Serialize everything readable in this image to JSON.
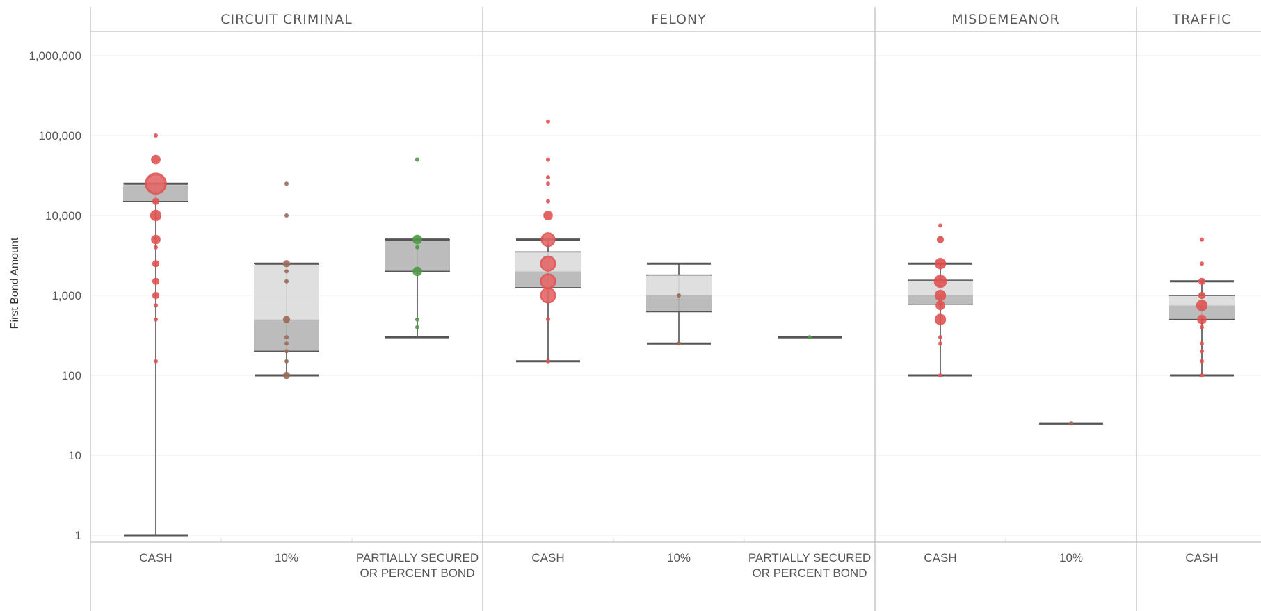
{
  "chart_data": {
    "type": "box",
    "ylabel": "First Bond Amount",
    "yscale": "log",
    "ylim": [
      1,
      2000000
    ],
    "yticks": [
      {
        "value": 1,
        "label": "1"
      },
      {
        "value": 10,
        "label": "10"
      },
      {
        "value": 100,
        "label": "100"
      },
      {
        "value": 1000,
        "label": "1,000"
      },
      {
        "value": 10000,
        "label": "10,000"
      },
      {
        "value": 100000,
        "label": "100,000"
      },
      {
        "value": 1000000,
        "label": "1,000,000"
      }
    ],
    "grid": true,
    "facets": [
      {
        "title": "CIRCUIT CRIMINAL",
        "categories": [
          {
            "label": [
              "CASH"
            ],
            "color": "#e05252",
            "box": {
              "min": 1,
              "q1": 15000,
              "median": 24000,
              "q3": 25000,
              "max": 25000
            },
            "points": [
              {
                "y": 100000,
                "size": 1
              },
              {
                "y": 50000,
                "size": 3
              },
              {
                "y": 25000,
                "size": 12
              },
              {
                "y": 15000,
                "size": 2
              },
              {
                "y": 10000,
                "size": 4
              },
              {
                "y": 5000,
                "size": 3
              },
              {
                "y": 4000,
                "size": 1
              },
              {
                "y": 2500,
                "size": 2
              },
              {
                "y": 1500,
                "size": 2
              },
              {
                "y": 1000,
                "size": 2
              },
              {
                "y": 750,
                "size": 1
              },
              {
                "y": 500,
                "size": 1
              },
              {
                "y": 150,
                "size": 1
              }
            ]
          },
          {
            "label": [
              "10%"
            ],
            "color": "#9a6a55",
            "box": {
              "min": 100,
              "q1": 200,
              "median": 500,
              "q3": 2500,
              "max": 2500
            },
            "points": [
              {
                "y": 25000,
                "size": 1
              },
              {
                "y": 10000,
                "size": 1
              },
              {
                "y": 2500,
                "size": 2
              },
              {
                "y": 2000,
                "size": 1
              },
              {
                "y": 1500,
                "size": 1
              },
              {
                "y": 500,
                "size": 2
              },
              {
                "y": 300,
                "size": 1
              },
              {
                "y": 250,
                "size": 1
              },
              {
                "y": 200,
                "size": 1
              },
              {
                "y": 150,
                "size": 1
              },
              {
                "y": 100,
                "size": 2
              }
            ]
          },
          {
            "label": [
              "PARTIALLY SECURED",
              "OR PERCENT BOND"
            ],
            "color": "#4f9a45",
            "box": {
              "min": 300,
              "q1": 2000,
              "median": 5000,
              "q3": 5000,
              "max": 5000
            },
            "points": [
              {
                "y": 50000,
                "size": 1
              },
              {
                "y": 5000,
                "size": 3
              },
              {
                "y": 4000,
                "size": 1
              },
              {
                "y": 2000,
                "size": 3
              },
              {
                "y": 500,
                "size": 1
              },
              {
                "y": 400,
                "size": 1
              }
            ]
          }
        ]
      },
      {
        "title": "FELONY",
        "categories": [
          {
            "label": [
              "CASH"
            ],
            "color": "#e05252",
            "box": {
              "min": 150,
              "q1": 1250,
              "median": 2000,
              "q3": 3500,
              "max": 5000
            },
            "points": [
              {
                "y": 150000,
                "size": 1
              },
              {
                "y": 50000,
                "size": 1
              },
              {
                "y": 30000,
                "size": 1
              },
              {
                "y": 25000,
                "size": 1
              },
              {
                "y": 15000,
                "size": 1
              },
              {
                "y": 10000,
                "size": 3
              },
              {
                "y": 5000,
                "size": 6
              },
              {
                "y": 2500,
                "size": 7
              },
              {
                "y": 1500,
                "size": 7
              },
              {
                "y": 1000,
                "size": 7
              },
              {
                "y": 500,
                "size": 1
              },
              {
                "y": 150,
                "size": 1
              }
            ]
          },
          {
            "label": [
              "10%"
            ],
            "color": "#9a6a55",
            "box": {
              "min": 250,
              "q1": 625,
              "median": 1000,
              "q3": 1800,
              "max": 2500
            },
            "points": [
              {
                "y": 1000,
                "size": 1
              },
              {
                "y": 250,
                "size": 1
              }
            ]
          },
          {
            "label": [
              "PARTIALLY SECURED",
              "OR PERCENT BOND"
            ],
            "color": "#4f9a45",
            "box": {
              "min": 300,
              "q1": 300,
              "median": 300,
              "q3": 300,
              "max": 300
            },
            "points": [
              {
                "y": 300,
                "size": 1
              }
            ]
          }
        ]
      },
      {
        "title": "MISDEMEANOR",
        "categories": [
          {
            "label": [
              "CASH"
            ],
            "color": "#e05252",
            "box": {
              "min": 100,
              "q1": 775,
              "median": 1000,
              "q3": 1550,
              "max": 2500
            },
            "points": [
              {
                "y": 7500,
                "size": 1
              },
              {
                "y": 5000,
                "size": 2
              },
              {
                "y": 2500,
                "size": 4
              },
              {
                "y": 1500,
                "size": 5
              },
              {
                "y": 1000,
                "size": 4
              },
              {
                "y": 750,
                "size": 3
              },
              {
                "y": 500,
                "size": 4
              },
              {
                "y": 300,
                "size": 1
              },
              {
                "y": 250,
                "size": 1
              },
              {
                "y": 100,
                "size": 1
              }
            ]
          },
          {
            "label": [
              "10%"
            ],
            "color": "#9a6a55",
            "box": {
              "min": 25,
              "q1": 25,
              "median": 25,
              "q3": 25,
              "max": 25
            },
            "points": [
              {
                "y": 25,
                "size": 1
              }
            ]
          }
        ]
      },
      {
        "title": "TRAFFIC",
        "categories": [
          {
            "label": [
              "CASH"
            ],
            "color": "#e05252",
            "box": {
              "min": 100,
              "q1": 500,
              "median": 750,
              "q3": 1000,
              "max": 1500
            },
            "points": [
              {
                "y": 5000,
                "size": 1
              },
              {
                "y": 2500,
                "size": 1
              },
              {
                "y": 1500,
                "size": 2
              },
              {
                "y": 1000,
                "size": 2
              },
              {
                "y": 750,
                "size": 4
              },
              {
                "y": 500,
                "size": 3
              },
              {
                "y": 400,
                "size": 1
              },
              {
                "y": 250,
                "size": 1
              },
              {
                "y": 200,
                "size": 1
              },
              {
                "y": 150,
                "size": 1
              },
              {
                "y": 100,
                "size": 1
              }
            ]
          }
        ]
      }
    ]
  }
}
